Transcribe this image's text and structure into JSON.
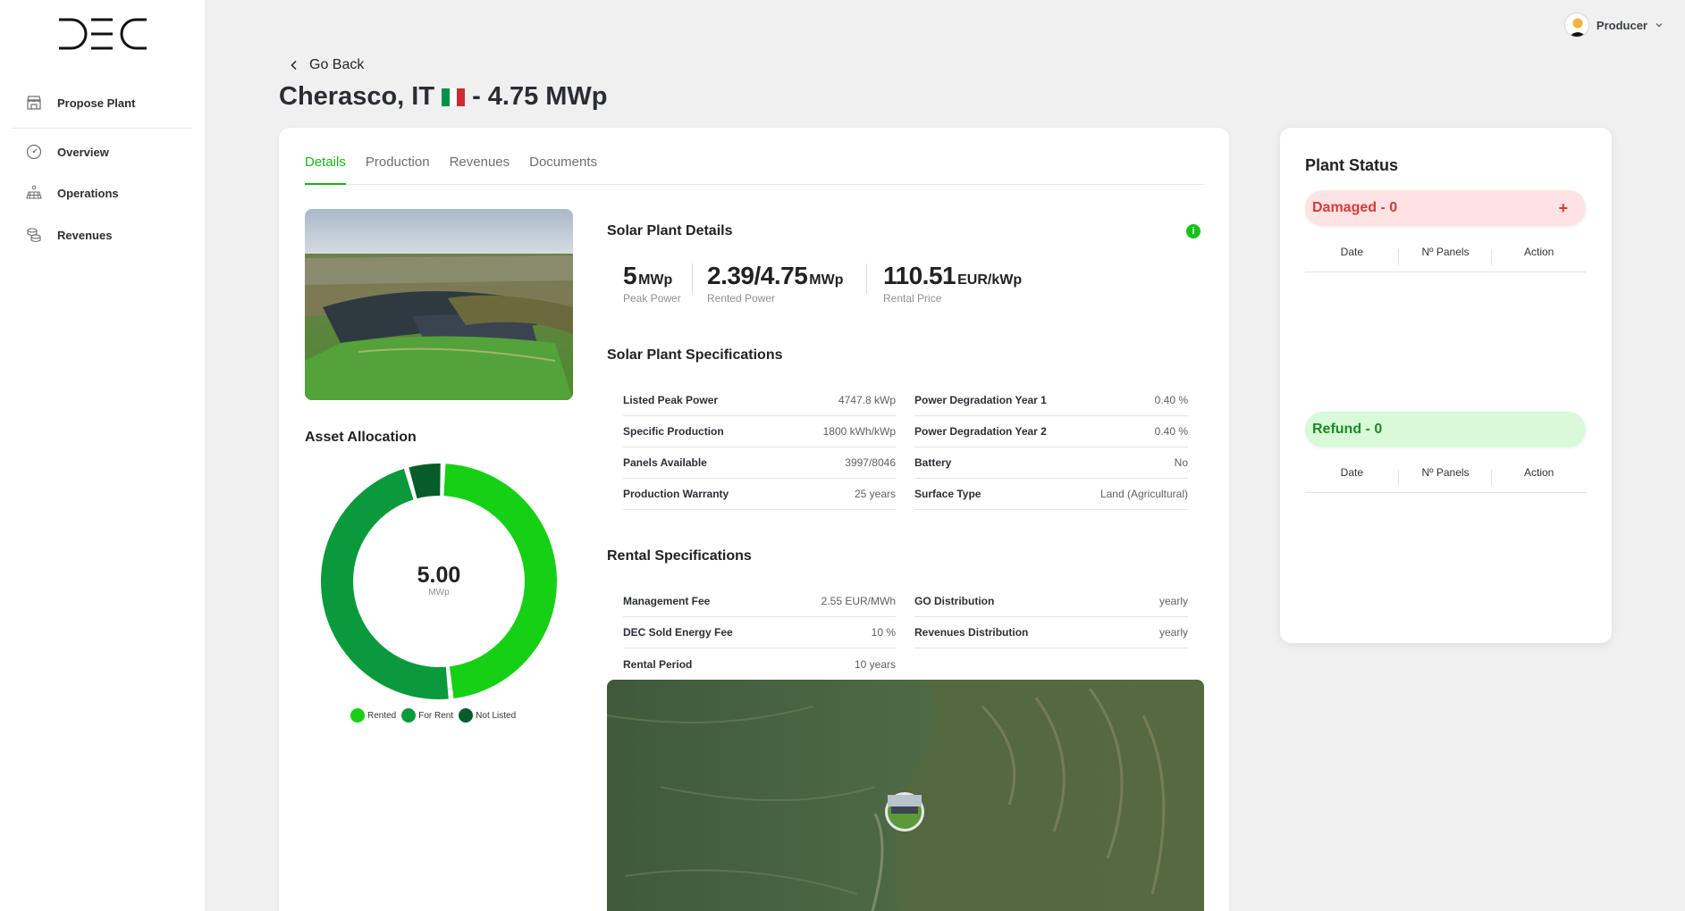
{
  "brand": {
    "logo_text": "DEC"
  },
  "sidebar": {
    "items": [
      {
        "label": "Propose Plant",
        "icon": "store-icon"
      },
      {
        "label": "Overview",
        "icon": "gauge-icon"
      },
      {
        "label": "Operations",
        "icon": "solar-panel-icon"
      },
      {
        "label": "Revenues",
        "icon": "coins-icon"
      }
    ]
  },
  "header": {
    "user_label": "Producer"
  },
  "page": {
    "go_back": "Go Back",
    "title_prefix": "Cherasco, IT",
    "title_suffix": "- 4.75 MWp",
    "flag_colors": [
      "#009246",
      "#ffffff",
      "#ce2b37"
    ]
  },
  "tabs": [
    {
      "label": "Details",
      "active": true
    },
    {
      "label": "Production",
      "active": false
    },
    {
      "label": "Revenues",
      "active": false
    },
    {
      "label": "Documents",
      "active": false
    }
  ],
  "details": {
    "section_title": "Solar Plant Details",
    "kpis": [
      {
        "value": "5",
        "unit": "MWp",
        "label": "Peak Power"
      },
      {
        "value": "2.39/4.75",
        "unit": "MWp",
        "label": "Rented Power"
      },
      {
        "value": "110.51",
        "unit": "EUR/kWp",
        "label": "Rental Price"
      }
    ]
  },
  "specs": {
    "title": "Solar Plant Specifications",
    "left": [
      {
        "key": "Listed Peak Power",
        "value": "4747.8 kWp"
      },
      {
        "key": "Specific Production",
        "value": "1800 kWh/kWp"
      },
      {
        "key": "Panels Available",
        "value": "3997/8046"
      },
      {
        "key": "Production Warranty",
        "value": "25 years"
      }
    ],
    "right": [
      {
        "key": "Power Degradation Year 1",
        "value": "0.40 %"
      },
      {
        "key": "Power Degradation Year 2",
        "value": "0.40 %"
      },
      {
        "key": "Battery",
        "value": "No"
      },
      {
        "key": "Surface Type",
        "value": "Land (Agricultural)"
      }
    ]
  },
  "rental": {
    "title": "Rental Specifications",
    "left": [
      {
        "key": "Management Fee",
        "value": "2.55 EUR/MWh"
      },
      {
        "key": "DEC Sold Energy Fee",
        "value": "10 %"
      },
      {
        "key": "Rental Period",
        "value": "10 years"
      }
    ],
    "right": [
      {
        "key": "GO Distribution",
        "value": "yearly"
      },
      {
        "key": "Revenues Distribution",
        "value": "yearly"
      }
    ]
  },
  "allocation": {
    "title": "Asset Allocation",
    "center_value": "5.00",
    "center_unit": "MWp",
    "legend": [
      {
        "label": "Rented",
        "color": "#16d016"
      },
      {
        "label": "For Rent",
        "color": "#0a9a3c"
      },
      {
        "label": "Not Listed",
        "color": "#075c2c"
      }
    ],
    "chart_data": {
      "type": "pie",
      "categories": [
        "Rented",
        "For Rent",
        "Not Listed"
      ],
      "values": [
        2.39,
        2.36,
        0.25
      ],
      "total": 5.0,
      "colors": [
        "#16d016",
        "#0a9a3c",
        "#075c2c"
      ]
    }
  },
  "status": {
    "title": "Plant Status",
    "damaged_label": "Damaged - 0",
    "refund_label": "Refund - 0",
    "add_symbol": "+",
    "columns": [
      "Date",
      "Nº Panels",
      "Action"
    ]
  }
}
